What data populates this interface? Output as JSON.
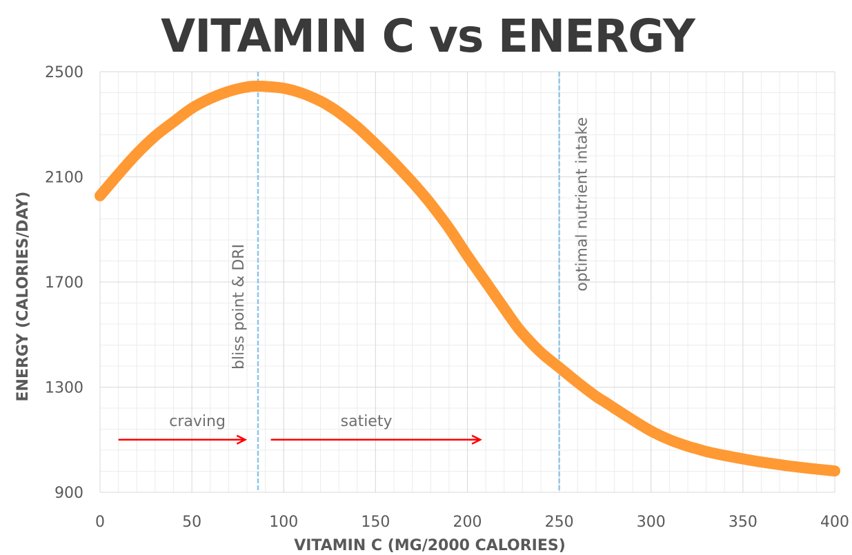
{
  "chart_data": {
    "type": "line",
    "title": "VITAMIN C vs ENERGY",
    "xlabel": "VITAMIN C (MG/2000 CALORIES)",
    "ylabel": "ENERGY (CALORIES/DAY)",
    "xlim": [
      0,
      400
    ],
    "ylim": [
      900,
      2500
    ],
    "xticks": [
      0,
      50,
      100,
      150,
      200,
      250,
      300,
      350,
      400
    ],
    "yticks": [
      900,
      1300,
      1700,
      2100,
      2500
    ],
    "x_minor_step": 10,
    "y_minor_step": 80,
    "grid": true,
    "legend": "none",
    "series": [
      {
        "name": "Energy",
        "color": "#FF9933",
        "x": [
          0,
          10,
          20,
          30,
          40,
          50,
          60,
          70,
          80,
          86,
          90,
          100,
          110,
          120,
          125,
          130,
          140,
          150,
          160,
          170,
          175,
          180,
          190,
          200,
          210,
          220,
          225,
          230,
          240,
          250,
          260,
          270,
          275,
          280,
          290,
          300,
          310,
          320,
          325,
          330,
          340,
          350,
          360,
          370,
          375,
          380,
          390,
          400
        ],
        "y": [
          2028,
          2110,
          2188,
          2255,
          2309,
          2361,
          2398,
          2425,
          2442,
          2445,
          2444,
          2437,
          2418,
          2388,
          2368,
          2345,
          2290,
          2225,
          2155,
          2080,
          2040,
          1998,
          1905,
          1800,
          1700,
          1600,
          1550,
          1505,
          1432,
          1375,
          1318,
          1265,
          1243,
          1220,
          1175,
          1133,
          1100,
          1075,
          1065,
          1055,
          1040,
          1027,
          1015,
          1005,
          1000,
          996,
          988,
          981
        ]
      }
    ],
    "reference_lines": [
      {
        "x": 86,
        "label": "bliss point & DRI",
        "color": "#8EC5E8",
        "style": "dashed"
      },
      {
        "x": 250,
        "label": "optimal nutrient intake",
        "color": "#8EC5E8",
        "style": "dashed"
      }
    ],
    "annotations": [
      {
        "text": "craving",
        "x": 53,
        "y": 1173
      },
      {
        "text": "satiety",
        "x": 145,
        "y": 1173
      }
    ],
    "arrows": [
      {
        "name": "craving-arrow",
        "x_start": 10,
        "x_end": 79,
        "y": 1100,
        "color": "#FF0000"
      },
      {
        "name": "satiety-arrow",
        "x_start": 93,
        "x_end": 207,
        "y": 1100,
        "color": "#FF0000"
      }
    ]
  }
}
